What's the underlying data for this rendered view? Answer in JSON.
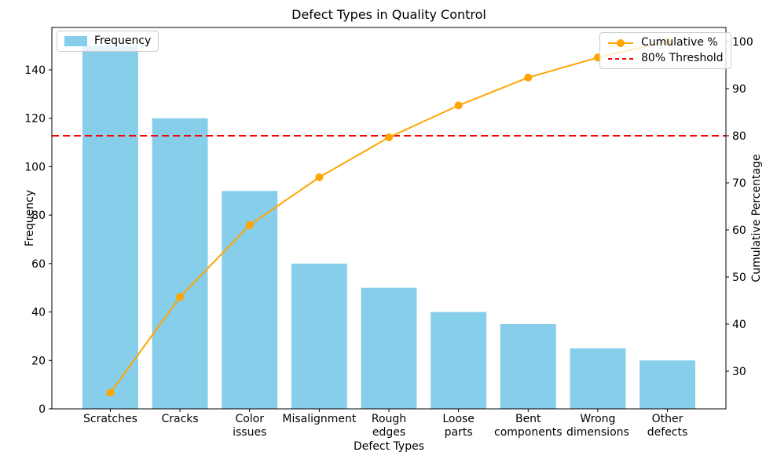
{
  "chart_data": {
    "type": "bar",
    "subtype": "pareto",
    "title": "Defect Types in Quality Control",
    "xlabel": "Defect Types",
    "ylabel_left": "Frequency",
    "ylabel_right": "Cumulative Percentage",
    "categories": [
      "Scratches",
      "Cracks",
      "Color\nissues",
      "Misalignment",
      "Rough\nedges",
      "Loose\nparts",
      "Bent\ncomponents",
      "Wrong\ndimensions",
      "Other\ndefects"
    ],
    "series": [
      {
        "name": "Frequency",
        "kind": "bar",
        "axis": "left",
        "color": "#87CEEB",
        "values": [
          150,
          120,
          90,
          60,
          50,
          40,
          35,
          25,
          20
        ]
      },
      {
        "name": "Cumulative %",
        "kind": "line",
        "axis": "right",
        "color": "#FFA500",
        "marker": "circle",
        "values": [
          25.42,
          45.76,
          61.02,
          71.19,
          79.66,
          86.44,
          92.37,
          96.61,
          100.0
        ]
      }
    ],
    "threshold_line": {
      "label": "80% Threshold",
      "value": 80,
      "color": "#FF0000",
      "style": "dashed",
      "axis": "right"
    },
    "axes": {
      "left_ticks": [
        0,
        20,
        40,
        60,
        80,
        100,
        120,
        140
      ],
      "right_ticks": [
        30,
        40,
        50,
        60,
        70,
        80,
        90,
        100
      ],
      "left_range": [
        0,
        157.5
      ],
      "right_range": [
        22,
        103
      ],
      "grid": false,
      "spine_color": "#000000"
    },
    "legend": {
      "left_entries": [
        "Frequency"
      ],
      "right_entries": [
        "Cumulative %",
        "80% Threshold"
      ],
      "positions": [
        "upper left",
        "upper right"
      ]
    },
    "background": "#FFFFFF",
    "text_color": "#000000"
  }
}
